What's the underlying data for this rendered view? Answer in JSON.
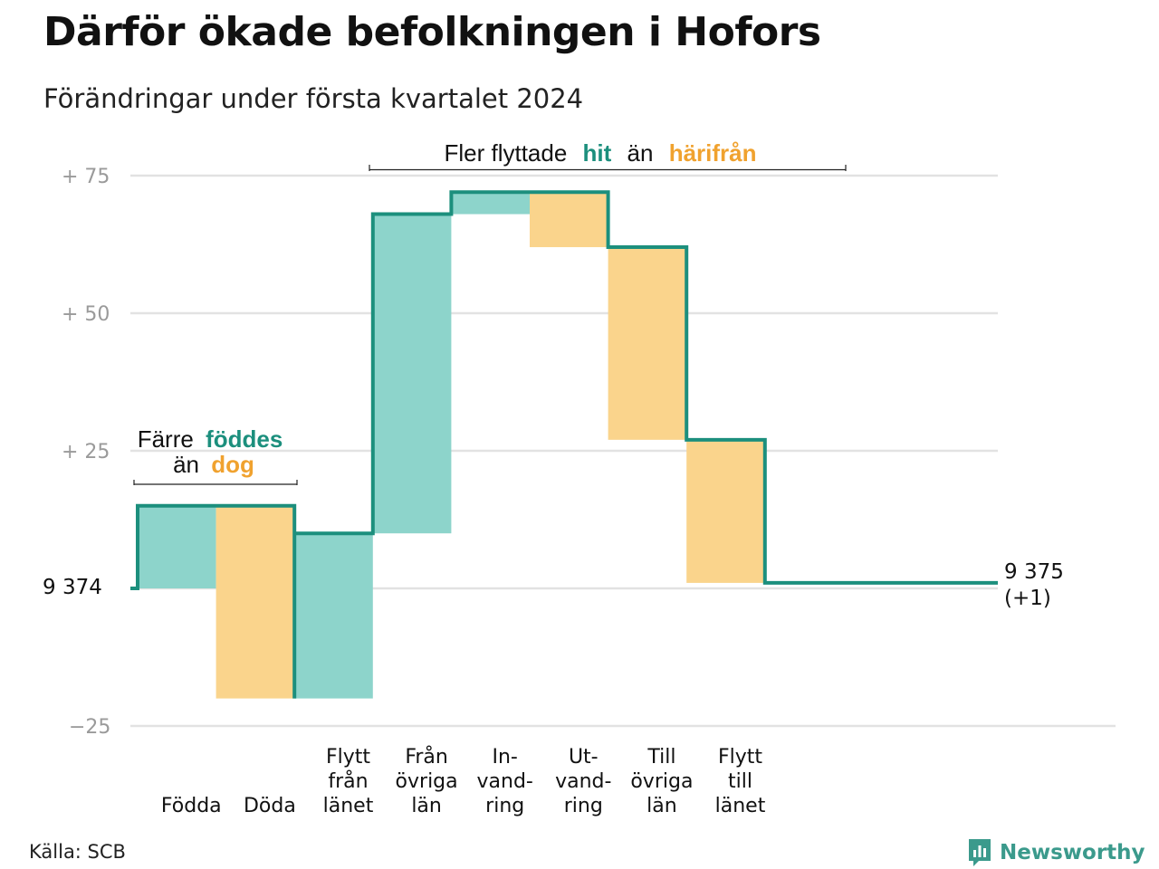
{
  "title": "Därför ökade befolkningen i Hofors",
  "subtitle": "Förändringar under första kvartalet 2024",
  "source": "Källa: SCB",
  "brand": {
    "name": "Newsworthy",
    "icon": "newsworthy-logo-icon",
    "color": "#3b9a8c"
  },
  "colors": {
    "increase_fill": "#8dd4cb",
    "decrease_fill": "#fad48c",
    "line": "#1c8f7d",
    "text_teal": "#1c8f7d",
    "text_orange": "#f0a22f",
    "grid": "#e2e2e2",
    "tick_text": "#9a9a9a"
  },
  "annotations": {
    "birth": {
      "line1_pre": "Färre",
      "line1_em": "föddes",
      "line2_pre": "än",
      "line2_em": "dog"
    },
    "move": {
      "pre": "Fler flyttade",
      "em1": "hit",
      "mid": "än",
      "em2": "härifrån"
    }
  },
  "end_label": {
    "value": "9 375",
    "change": "(+1)"
  },
  "chart_data": {
    "type": "waterfall",
    "title": "Därför ökade befolkningen i Hofors",
    "subtitle": "Förändringar under första kvartalet 2024",
    "baseline": 9374,
    "baseline_label": "9  374",
    "final_value": 9375,
    "y_ticks": [
      {
        "value": 75,
        "label": "+  75"
      },
      {
        "value": 50,
        "label": "+  50"
      },
      {
        "value": 25,
        "label": "+  25"
      },
      {
        "value": -25,
        "label": "−25"
      }
    ],
    "ylim": [
      -25,
      75
    ],
    "categories": [
      {
        "key": "fodda",
        "label": [
          "Födda"
        ],
        "value": 15,
        "type": "increase"
      },
      {
        "key": "doda",
        "label": [
          "Döda"
        ],
        "value": -35,
        "type": "decrease"
      },
      {
        "key": "flytt_fran_lanet",
        "label": [
          "Flytt",
          "från",
          "länet"
        ],
        "value": 30,
        "type": "increase"
      },
      {
        "key": "fran_ovriga_lan",
        "label": [
          "Från",
          "övriga",
          "län"
        ],
        "value": 58,
        "type": "increase"
      },
      {
        "key": "invandring",
        "label": [
          "In-",
          "vand-",
          "ring"
        ],
        "value": 4,
        "type": "increase"
      },
      {
        "key": "utvandring",
        "label": [
          "Ut-",
          "vand-",
          "ring"
        ],
        "value": -10,
        "type": "decrease"
      },
      {
        "key": "till_ovriga_lan",
        "label": [
          "Till",
          "övriga",
          "län"
        ],
        "value": -35,
        "type": "decrease"
      },
      {
        "key": "flytt_till_lanet",
        "label": [
          "Flytt",
          "till",
          "länet"
        ],
        "value": -26,
        "type": "decrease"
      }
    ]
  }
}
